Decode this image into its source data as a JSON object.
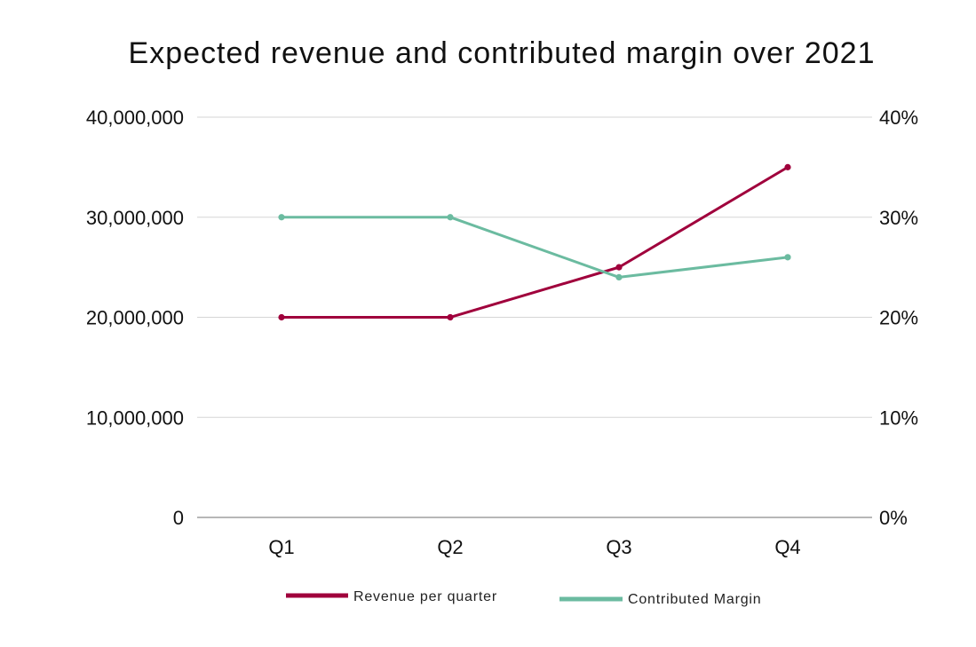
{
  "chart_data": {
    "type": "line",
    "title": "Expected revenue and contributed margin over 2021",
    "categories": [
      "Q1",
      "Q2",
      "Q3",
      "Q4"
    ],
    "y_left": {
      "range": [
        0,
        40000000
      ],
      "ticks": [
        0,
        10000000,
        20000000,
        30000000,
        40000000
      ],
      "tick_labels": [
        "0",
        "10,000,000",
        "20,000,000",
        "30,000,000",
        "40,000,000"
      ]
    },
    "y_right": {
      "range": [
        0,
        0.4
      ],
      "ticks": [
        0,
        0.1,
        0.2,
        0.3,
        0.4
      ],
      "tick_labels": [
        "0%",
        "10%",
        "20%",
        "30%",
        "40%"
      ]
    },
    "grid": true,
    "legend_position": "bottom",
    "series": [
      {
        "name": "Revenue per quarter",
        "axis": "left",
        "color": "#A0003C",
        "values": [
          20000000,
          20000000,
          25000000,
          35000000
        ]
      },
      {
        "name": "Contributed Margin",
        "axis": "right",
        "color": "#6BBBA0",
        "values": [
          0.3,
          0.3,
          0.24,
          0.26
        ]
      }
    ]
  }
}
